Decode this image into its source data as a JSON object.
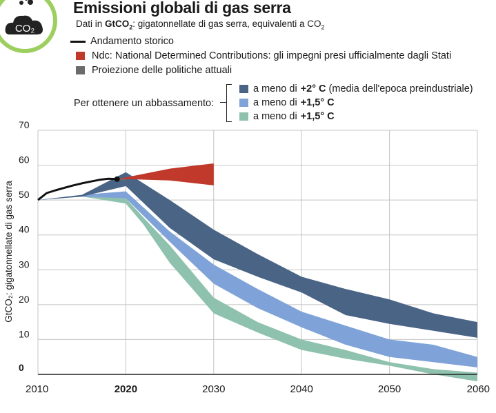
{
  "header": {
    "icon_label": "CO₂",
    "title": "Emissioni globali di gas serra",
    "subtitle_prefix": "Dati in ",
    "subtitle_unit": "GtCO",
    "subtitle_unit_sub": "2",
    "subtitle_rest": ": gigatonnellate di gas serra, equivalenti a CO",
    "subtitle_rest_sub": "2"
  },
  "legend": {
    "historical": "Andamento storico",
    "ndc": "Ndc: National Determined Contributions: gli impegni presi ufficialmente dagli Stati",
    "current": "Proiezione delle politiche attuali"
  },
  "scenarios": {
    "group_label": "Per ottenere un abbassamento:",
    "items": [
      {
        "prefix": "a meno di",
        "value": "+2° C",
        "suffix": "(media dell'epoca preindustriale)",
        "color": "#4a6485"
      },
      {
        "prefix": "a meno di",
        "value": "+1,5° C",
        "suffix": "",
        "color": "#7fa3d8"
      },
      {
        "prefix": "a meno di",
        "value": "+1,5° C",
        "suffix": "",
        "color": "#8fc2ae"
      }
    ]
  },
  "colors": {
    "historical": "#111111",
    "ndc": "#c0392b",
    "current": "#6b6b6b",
    "grid": "#c4c4c4"
  },
  "chart_data": {
    "type": "area",
    "ylabel": "GtCO₂: gigatonnellate di gas serra",
    "xlim": [
      2010,
      2060
    ],
    "ylim": [
      0,
      70
    ],
    "xticks": [
      2010,
      2020,
      2030,
      2040,
      2050,
      2060
    ],
    "xtick_bold": 2020,
    "yticks": [
      0,
      10,
      20,
      30,
      40,
      50,
      60,
      70
    ],
    "ytick_bold": 0,
    "historical": {
      "x": [
        2010,
        2011,
        2012,
        2013,
        2014,
        2015,
        2016,
        2017,
        2018,
        2019
      ],
      "y": [
        50,
        52,
        52.8,
        53.5,
        54.2,
        54.8,
        55.3,
        55.8,
        56.1,
        56
      ]
    },
    "ndc": {
      "x": [
        2019,
        2020,
        2025,
        2030
      ],
      "upper": [
        56,
        56.5,
        59,
        60.5
      ],
      "lower": [
        56,
        56,
        55.6,
        54.2
      ]
    },
    "current": {
      "x": [
        2019,
        2020
      ],
      "upper": [
        56,
        56.5
      ],
      "lower": [
        56,
        55.5
      ]
    },
    "series": [
      {
        "name": "a meno di +2° C",
        "color": "#4a6485",
        "x": [
          2010,
          2015,
          2020,
          2025,
          2030,
          2035,
          2040,
          2045,
          2050,
          2055,
          2060
        ],
        "upper": [
          50,
          51.5,
          58,
          50,
          41.5,
          34.5,
          28,
          24.5,
          21.5,
          17.5,
          15
        ],
        "lower": [
          50,
          51,
          54,
          42,
          33,
          28,
          23.5,
          17,
          14.5,
          12.5,
          10.5
        ]
      },
      {
        "name": "a meno di +1,5° C",
        "color": "#7fa3d8",
        "x": [
          2010,
          2015,
          2020,
          2025,
          2030,
          2035,
          2040,
          2045,
          2050,
          2055,
          2060
        ],
        "upper": [
          50,
          51.5,
          52.5,
          41,
          31.5,
          24.5,
          18,
          14,
          10,
          8.5,
          5
        ],
        "lower": [
          50,
          51,
          50.5,
          38,
          26,
          19,
          13.5,
          8.5,
          5,
          3.5,
          2
        ]
      },
      {
        "name": "a meno di +1,5° C",
        "color": "#8fc2ae",
        "x": [
          2010,
          2015,
          2020,
          2022,
          2025,
          2030,
          2035,
          2040,
          2045,
          2050,
          2055,
          2060
        ],
        "upper": [
          50,
          51.2,
          50.5,
          45,
          37,
          22,
          15,
          10,
          7,
          3.5,
          1.5,
          0.5
        ],
        "lower": [
          50,
          51,
          49,
          43,
          32,
          17.5,
          12,
          7,
          4.5,
          2.5,
          0,
          -2
        ]
      }
    ]
  }
}
